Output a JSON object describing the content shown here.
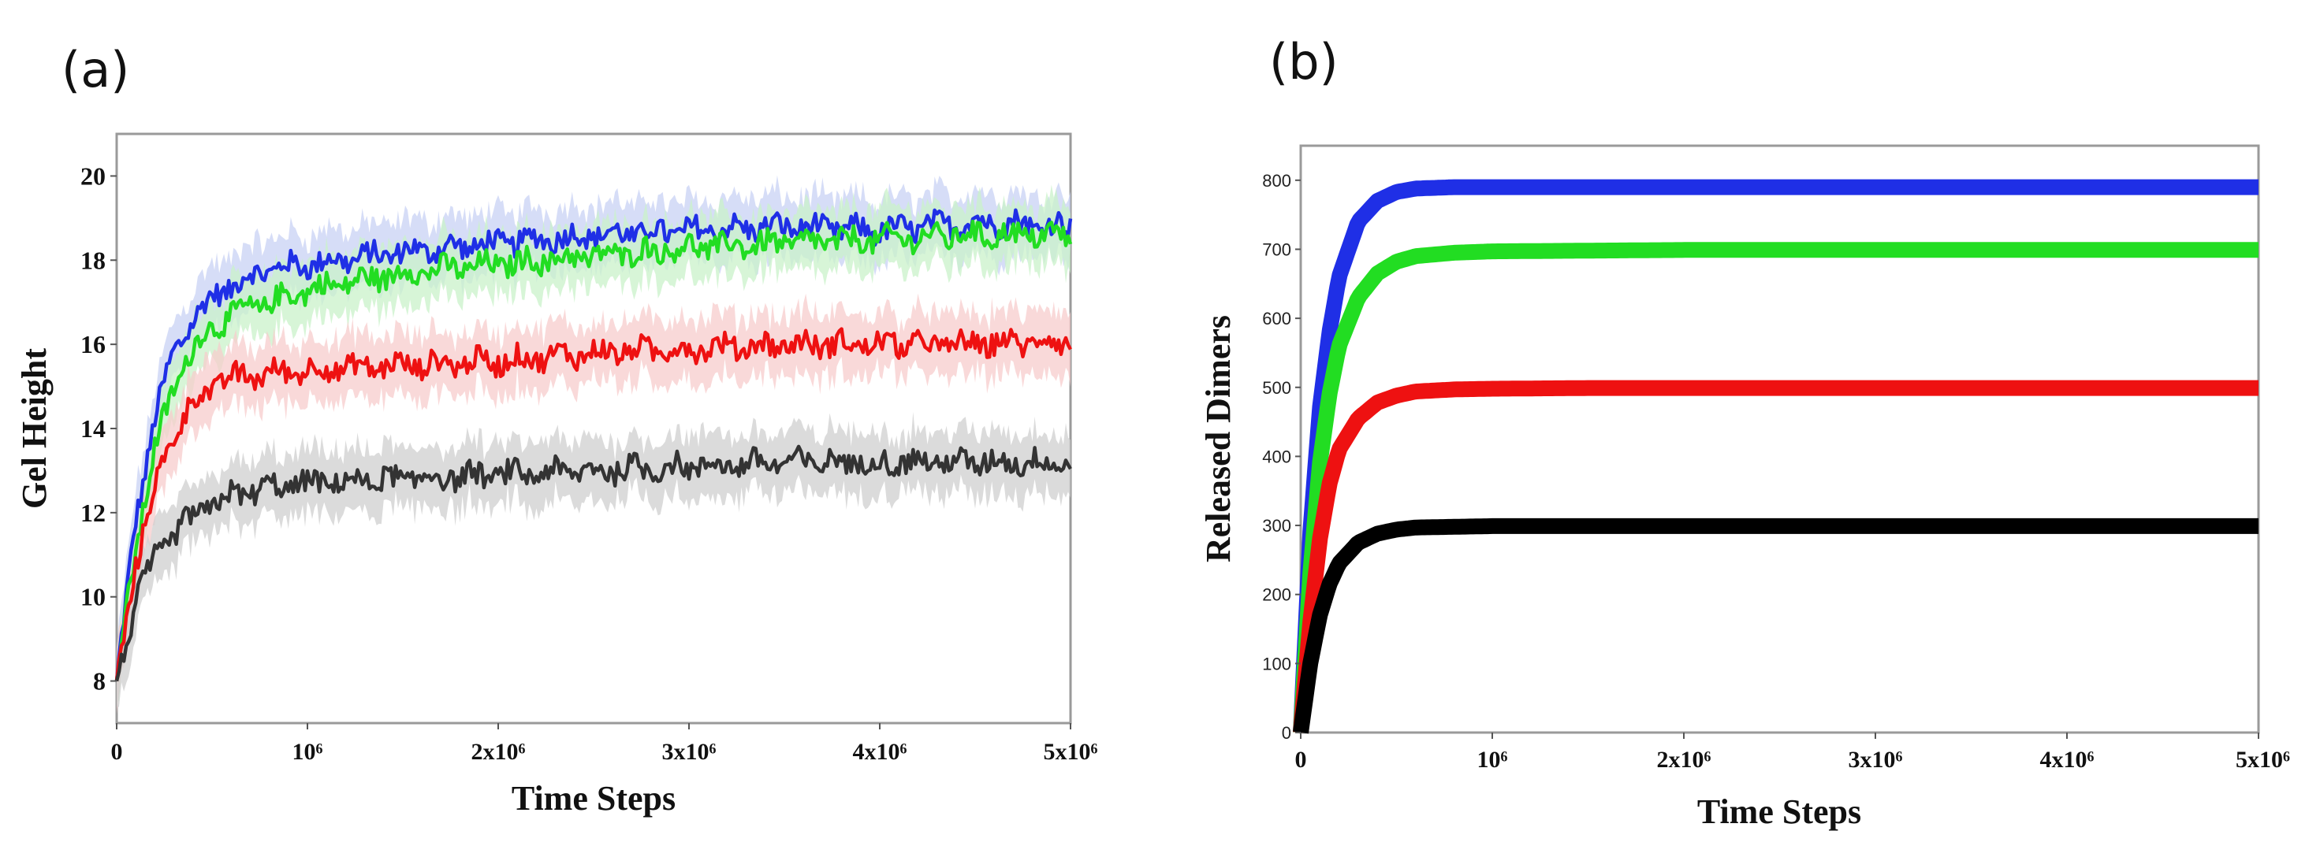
{
  "figure": {
    "panels": [
      "(a)",
      "(b)"
    ]
  },
  "chart_data": [
    {
      "type": "line",
      "panel": "(a)",
      "title": "",
      "xlabel": "Time Steps",
      "ylabel": "Gel Height",
      "xlim": [
        0,
        5000000
      ],
      "ylim": [
        7,
        21
      ],
      "xticks": [
        0,
        1000000,
        2000000,
        3000000,
        4000000,
        5000000
      ],
      "xtick_labels": [
        "0",
        "10⁶",
        "2x10⁶",
        "3x10⁶",
        "4x10⁶",
        "5x10⁶"
      ],
      "yticks": [
        8,
        10,
        12,
        14,
        16,
        18,
        20
      ],
      "ytick_labels": [
        "8",
        "10",
        "12",
        "14",
        "16",
        "18",
        "20"
      ],
      "x": [
        0,
        100000,
        200000,
        300000,
        400000,
        500000,
        600000,
        800000,
        1000000,
        1500000,
        2000000,
        2500000,
        3000000,
        3500000,
        4000000,
        4500000,
        5000000
      ],
      "series": [
        {
          "name": "blue",
          "color": "#1f2fe6",
          "band_color": "#c8d2f4",
          "values": [
            8.0,
            11.8,
            14.3,
            15.8,
            16.6,
            17.1,
            17.4,
            17.8,
            17.9,
            18.2,
            18.4,
            18.6,
            18.7,
            18.8,
            18.7,
            18.9,
            18.8
          ]
        },
        {
          "name": "green",
          "color": "#22dd22",
          "band_color": "#c9f1c9",
          "values": [
            8.0,
            11.2,
            13.5,
            15.0,
            15.9,
            16.4,
            16.7,
            17.0,
            17.3,
            17.7,
            17.9,
            18.1,
            18.3,
            18.4,
            18.5,
            18.6,
            18.6
          ]
        },
        {
          "name": "red",
          "color": "#ee1111",
          "band_color": "#f7cccc",
          "values": [
            8.0,
            10.8,
            12.6,
            13.9,
            14.6,
            15.0,
            15.2,
            15.3,
            15.4,
            15.5,
            15.6,
            15.8,
            15.9,
            16.0,
            16.0,
            16.0,
            16.1
          ]
        },
        {
          "name": "black",
          "color": "#333333",
          "band_color": "#cfcfcf",
          "values": [
            8.0,
            9.9,
            10.9,
            11.5,
            11.9,
            12.2,
            12.4,
            12.6,
            12.7,
            12.8,
            12.9,
            13.0,
            13.1,
            13.2,
            13.2,
            13.2,
            13.2
          ]
        }
      ]
    },
    {
      "type": "line",
      "panel": "(b)",
      "title": "",
      "xlabel": "Time Steps",
      "ylabel": "Released Dimers",
      "xlim": [
        0,
        5000000
      ],
      "ylim": [
        0,
        850
      ],
      "xticks": [
        0,
        1000000,
        2000000,
        3000000,
        4000000,
        5000000
      ],
      "xtick_labels": [
        "0",
        "10⁶",
        "2x10⁶",
        "3x10⁶",
        "4x10⁶",
        "5x10⁶"
      ],
      "yticks": [
        0,
        100,
        200,
        300,
        400,
        500,
        600,
        700,
        800
      ],
      "ytick_labels": [
        "0",
        "100",
        "200",
        "300",
        "400",
        "500",
        "600",
        "700",
        "800"
      ],
      "x": [
        0,
        50000,
        100000,
        150000,
        200000,
        300000,
        400000,
        500000,
        600000,
        800000,
        1000000,
        1500000,
        2000000,
        3000000,
        4000000,
        5000000
      ],
      "series": [
        {
          "name": "blue",
          "color": "#1f2fe6",
          "values": [
            0,
            290,
            470,
            580,
            660,
            740,
            770,
            783,
            788,
            790,
            790,
            790,
            790,
            790,
            790,
            790
          ]
        },
        {
          "name": "green",
          "color": "#22dd22",
          "values": [
            0,
            230,
            390,
            490,
            560,
            630,
            665,
            682,
            690,
            695,
            697,
            698,
            699,
            699,
            699,
            699
          ]
        },
        {
          "name": "red",
          "color": "#ee1111",
          "values": [
            0,
            160,
            280,
            360,
            410,
            455,
            478,
            488,
            494,
            497,
            498,
            499,
            499,
            499,
            499,
            499
          ]
        },
        {
          "name": "black",
          "color": "#000000",
          "values": [
            0,
            100,
            170,
            215,
            245,
            275,
            288,
            294,
            297,
            298,
            299,
            299,
            299,
            299,
            299,
            299
          ]
        }
      ]
    }
  ]
}
